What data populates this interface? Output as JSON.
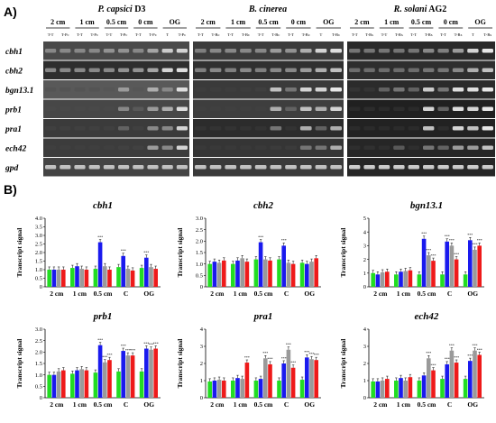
{
  "panel_a": {
    "label": "A)",
    "organisms": [
      {
        "name_italic": "P. capsici",
        "name_suffix": " D3",
        "conditions": [
          "2 cm",
          "1 cm",
          "0.5 cm",
          "0 cm",
          "OG"
        ],
        "lanes": [
          "T-T",
          "T-Pc",
          "T-T",
          "T-Pc",
          "T-T",
          "T-Pc",
          "T-T",
          "T-Pc",
          "T",
          "T-Pc"
        ]
      },
      {
        "name_italic": "B. cinerea",
        "name_suffix": "",
        "conditions": [
          "2 cm",
          "1 cm",
          "0.5 cm",
          "0 cm",
          "OG"
        ],
        "lanes": [
          "T-T",
          "T-Bc",
          "T-T",
          "T-Bc",
          "T-T",
          "T-Bc",
          "T-T",
          "T-Bc",
          "T",
          "T-Bc"
        ]
      },
      {
        "name_italic": "R. solani",
        "name_suffix": " AG2",
        "conditions": [
          "2 cm",
          "1 cm",
          "0.5 cm",
          "0 cm",
          "OG"
        ],
        "lanes": [
          "T-T",
          "T-Rs",
          "T-T",
          "T-Rs",
          "T-T",
          "T-Rs",
          "T-T",
          "T-Rs",
          "T",
          "T-Rs"
        ]
      }
    ],
    "genes": [
      "cbh1",
      "cbh2",
      "bgn13.1",
      "prb1",
      "pra1",
      "ech42",
      "gpd"
    ]
  },
  "panel_b": {
    "label": "B)"
  },
  "colors": {
    "green": "#22dd22",
    "blue": "#1a1aee",
    "gray": "#9a9a9a",
    "red": "#ee1a1a"
  },
  "chart_data": [
    {
      "type": "bar",
      "title": "cbh1",
      "ylabel": "Transcript signal",
      "categories": [
        "2 cm",
        "1 cm",
        "0.5 cm",
        "C",
        "OG"
      ],
      "ylim": [
        0,
        4.0
      ],
      "yticks": [
        0,
        0.5,
        1.0,
        1.5,
        2.0,
        2.5,
        3.0,
        3.5,
        4.0
      ],
      "yticklabels": [
        "0",
        "0.5",
        "1.0",
        "1.5",
        "2.0",
        "2.5",
        "3.0",
        "3.5",
        "4.0"
      ],
      "series_values": [
        [
          1.0,
          1.0,
          1.0,
          1.0
        ],
        [
          1.1,
          1.2,
          1.05,
          1.0
        ],
        [
          1.05,
          2.6,
          1.2,
          1.0
        ],
        [
          1.15,
          1.8,
          1.05,
          0.95
        ],
        [
          1.1,
          1.7,
          1.15,
          1.05
        ]
      ]
    },
    {
      "type": "bar",
      "title": "cbh2",
      "ylabel": "Transcript signal",
      "categories": [
        "2 cm",
        "1 cm",
        "0.5 cm",
        "C",
        "OG"
      ],
      "ylim": [
        0,
        3.0
      ],
      "yticks": [
        0,
        0.5,
        1.0,
        1.5,
        2.0,
        2.5,
        3.0
      ],
      "yticklabels": [
        "0",
        "0.5",
        "1.0",
        "1.5",
        "2.0",
        "2.5",
        "3.0"
      ],
      "series_values": [
        [
          1.0,
          1.1,
          1.05,
          1.15
        ],
        [
          1.0,
          1.15,
          1.25,
          1.1
        ],
        [
          1.2,
          1.95,
          1.2,
          1.15
        ],
        [
          1.2,
          1.8,
          1.05,
          1.0
        ],
        [
          1.05,
          1.0,
          1.1,
          1.25
        ]
      ]
    },
    {
      "type": "bar",
      "title": "bgn13.1",
      "ylabel": "Transcript signal",
      "categories": [
        "2 cm",
        "1 cm",
        "0.5 cm",
        "C",
        "OG"
      ],
      "ylim": [
        0,
        5
      ],
      "yticks": [
        0,
        1,
        2,
        3,
        4,
        5
      ],
      "yticklabels": [
        "0",
        "1",
        "2",
        "3",
        "4",
        "5"
      ],
      "series_values": [
        [
          1.0,
          0.9,
          1.05,
          1.1
        ],
        [
          0.9,
          1.1,
          1.15,
          1.2
        ],
        [
          0.9,
          3.5,
          2.3,
          1.9
        ],
        [
          0.9,
          3.3,
          3.0,
          2.0
        ],
        [
          0.9,
          3.4,
          2.7,
          3.0
        ]
      ]
    },
    {
      "type": "bar",
      "title": "prb1",
      "ylabel": "Transcript signal",
      "categories": [
        "2 cm",
        "1 cm",
        "0.5 cm",
        "C",
        "OG"
      ],
      "ylim": [
        0,
        3.0
      ],
      "yticks": [
        0,
        0.5,
        1.0,
        1.5,
        2.0,
        2.5,
        3.0
      ],
      "yticklabels": [
        "0",
        "0.5",
        "1.0",
        "1.5",
        "2.0",
        "2.5",
        "3.0"
      ],
      "series_values": [
        [
          1.0,
          1.0,
          1.15,
          1.2
        ],
        [
          1.05,
          1.2,
          1.25,
          1.2
        ],
        [
          1.1,
          2.3,
          1.55,
          1.65
        ],
        [
          1.15,
          2.05,
          1.85,
          1.85
        ],
        [
          1.15,
          2.15,
          2.1,
          2.15
        ]
      ]
    },
    {
      "type": "bar",
      "title": "pra1",
      "ylabel": "Transcript signal",
      "categories": [
        "2 cm",
        "1 cm",
        "0.5 cm",
        "C",
        "OG"
      ],
      "ylim": [
        0,
        4
      ],
      "yticks": [
        0,
        1,
        2,
        3,
        4
      ],
      "yticklabels": [
        "0",
        "1",
        "2",
        "3",
        "4"
      ],
      "series_values": [
        [
          0.95,
          1.0,
          1.05,
          1.0
        ],
        [
          1.0,
          1.15,
          1.1,
          2.05
        ],
        [
          1.0,
          1.1,
          2.3,
          1.95
        ],
        [
          1.0,
          2.0,
          2.8,
          1.75
        ],
        [
          1.05,
          2.35,
          2.25,
          2.2
        ]
      ]
    },
    {
      "type": "bar",
      "title": "ech42",
      "ylabel": "Transcript signal",
      "categories": [
        "2 cm",
        "1 cm",
        "0.5 cm",
        "C",
        "OG"
      ],
      "ylim": [
        0,
        4
      ],
      "yticks": [
        0,
        1,
        2,
        3,
        4
      ],
      "yticklabels": [
        "0",
        "1",
        "2",
        "3",
        "4"
      ],
      "series_values": [
        [
          0.95,
          0.95,
          1.0,
          1.1
        ],
        [
          1.0,
          1.15,
          1.0,
          1.2
        ],
        [
          1.0,
          1.3,
          2.3,
          1.6
        ],
        [
          1.1,
          1.95,
          2.75,
          2.05
        ],
        [
          1.1,
          2.15,
          2.75,
          2.5
        ]
      ]
    }
  ]
}
